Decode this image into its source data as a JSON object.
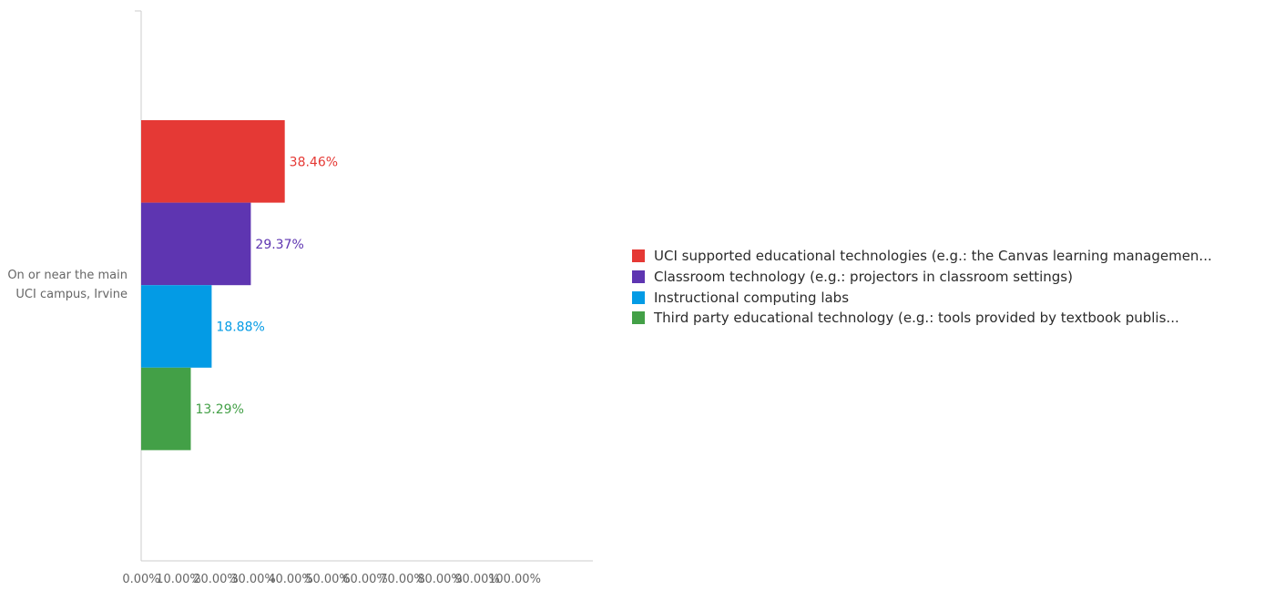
{
  "chart_data": {
    "type": "bar",
    "orientation": "horizontal",
    "categories": [
      "On or near the main UCI campus, Irvine"
    ],
    "category_label_lines": [
      "On or near the main",
      "UCI campus, Irvine"
    ],
    "series": [
      {
        "name": "UCI supported educational technologies (e.g.: the Canvas learning managemen...",
        "values": [
          38.46
        ],
        "label": "38.46%",
        "color": "#e53935"
      },
      {
        "name": "Classroom technology (e.g.: projectors in classroom settings)",
        "values": [
          29.37
        ],
        "label": "29.37%",
        "color": "#5e35b1"
      },
      {
        "name": "Instructional computing labs",
        "values": [
          18.88
        ],
        "label": "18.88%",
        "color": "#039be5"
      },
      {
        "name": "Third party educational technology (e.g.: tools provided by textbook publis...",
        "values": [
          13.29
        ],
        "label": "13.29%",
        "color": "#43a047"
      }
    ],
    "x_ticks": [
      "0.00%",
      "10.00%",
      "20.00%",
      "30.00%",
      "40.00%",
      "50.00%",
      "60.00%",
      "70.00%",
      "80.00%",
      "90.00%",
      "100.00%"
    ],
    "xlim": [
      0,
      100
    ],
    "grid": false,
    "legend_position": "right",
    "axis_color": "#cccccc",
    "label_color": "#666666"
  }
}
